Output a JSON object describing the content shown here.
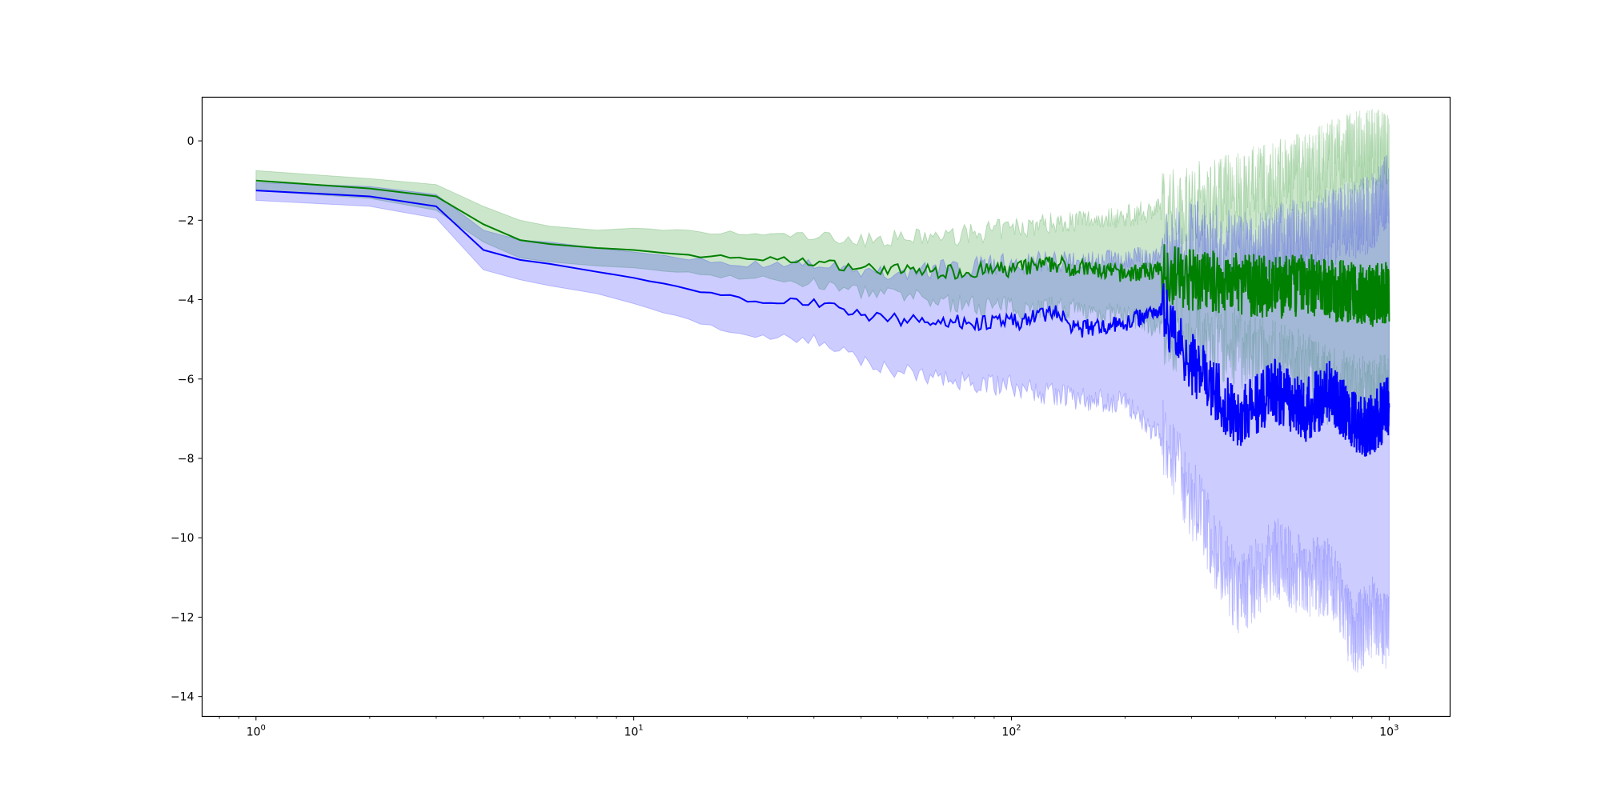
{
  "chart_data": {
    "type": "line",
    "title": "",
    "xlabel": "",
    "ylabel": "",
    "xscale": "log",
    "xlim": [
      0.72,
      1450
    ],
    "ylim": [
      -14.5,
      1.1
    ],
    "grid": false,
    "legend": "none",
    "x_tick_labels": [
      {
        "base": "10",
        "exp": "0",
        "value": 1
      },
      {
        "base": "10",
        "exp": "1",
        "value": 10
      },
      {
        "base": "10",
        "exp": "2",
        "value": 100
      },
      {
        "base": "10",
        "exp": "3",
        "value": 1000
      }
    ],
    "y_tick_labels": [
      {
        "text": "0",
        "value": 0
      },
      {
        "text": "−2",
        "value": -2
      },
      {
        "text": "−4",
        "value": -4
      },
      {
        "text": "−6",
        "value": -6
      },
      {
        "text": "−8",
        "value": -8
      },
      {
        "text": "−10",
        "value": -10
      },
      {
        "text": "−12",
        "value": -12
      },
      {
        "text": "−14",
        "value": -14
      }
    ],
    "series": [
      {
        "color": "#008000",
        "band_color": "#008000",
        "points": [
          {
            "x": 1,
            "y": -1.0,
            "lo": -1.25,
            "hi": -0.75
          },
          {
            "x": 2,
            "y": -1.2,
            "lo": -1.45,
            "hi": -0.95
          },
          {
            "x": 3,
            "y": -1.4,
            "lo": -1.75,
            "hi": -1.1
          },
          {
            "x": 4,
            "y": -2.1,
            "lo": -2.55,
            "hi": -1.65
          },
          {
            "x": 5,
            "y": -2.5,
            "lo": -2.95,
            "hi": -2.0
          },
          {
            "x": 6,
            "y": -2.6,
            "lo": -3.05,
            "hi": -2.15
          },
          {
            "x": 8,
            "y": -2.7,
            "lo": -3.15,
            "hi": -2.25
          },
          {
            "x": 10,
            "y": -2.75,
            "lo": -3.2,
            "hi": -2.2
          },
          {
            "x": 15,
            "y": -2.9,
            "lo": -3.35,
            "hi": -2.3
          },
          {
            "x": 20,
            "y": -2.95,
            "lo": -3.45,
            "hi": -2.35
          },
          {
            "x": 30,
            "y": -3.05,
            "lo": -3.6,
            "hi": -2.4
          },
          {
            "x": 40,
            "y": -3.2,
            "lo": -3.8,
            "hi": -2.5
          },
          {
            "x": 50,
            "y": -3.25,
            "lo": -3.9,
            "hi": -2.45
          },
          {
            "x": 70,
            "y": -3.3,
            "lo": -4.1,
            "hi": -2.4
          },
          {
            "x": 100,
            "y": -3.25,
            "lo": -4.2,
            "hi": -2.2
          },
          {
            "x": 130,
            "y": -3.1,
            "lo": -4.2,
            "hi": -2.05
          },
          {
            "x": 150,
            "y": -3.2,
            "lo": -4.3,
            "hi": -2.0
          },
          {
            "x": 200,
            "y": -3.35,
            "lo": -4.4,
            "hi": -1.9
          },
          {
            "x": 250,
            "y": -3.25,
            "lo": -4.7,
            "hi": -1.7
          },
          {
            "x": 300,
            "y": -3.5,
            "lo": -5.0,
            "hi": -1.5
          },
          {
            "x": 400,
            "y": -3.6,
            "lo": -5.2,
            "hi": -1.3
          },
          {
            "x": 500,
            "y": -3.7,
            "lo": -5.5,
            "hi": -1.0
          },
          {
            "x": 600,
            "y": -3.6,
            "lo": -5.8,
            "hi": -0.8
          },
          {
            "x": 700,
            "y": -3.75,
            "lo": -6.2,
            "hi": -0.5
          },
          {
            "x": 800,
            "y": -3.85,
            "lo": -6.4,
            "hi": -0.3
          },
          {
            "x": 900,
            "y": -3.9,
            "lo": -6.5,
            "hi": -0.2
          },
          {
            "x": 1000,
            "y": -3.8,
            "lo": -6.3,
            "hi": -0.3
          }
        ]
      },
      {
        "color": "#0000ff",
        "band_color": "#0000ff",
        "points": [
          {
            "x": 1,
            "y": -1.25,
            "lo": -1.5,
            "hi": -1.05
          },
          {
            "x": 2,
            "y": -1.4,
            "lo": -1.65,
            "hi": -1.15
          },
          {
            "x": 3,
            "y": -1.65,
            "lo": -1.95,
            "hi": -1.35
          },
          {
            "x": 4,
            "y": -2.75,
            "lo": -3.25,
            "hi": -2.25
          },
          {
            "x": 5,
            "y": -3.0,
            "lo": -3.5,
            "hi": -2.5
          },
          {
            "x": 6,
            "y": -3.1,
            "lo": -3.65,
            "hi": -2.55
          },
          {
            "x": 8,
            "y": -3.3,
            "lo": -3.85,
            "hi": -2.7
          },
          {
            "x": 10,
            "y": -3.45,
            "lo": -4.1,
            "hi": -2.8
          },
          {
            "x": 15,
            "y": -3.8,
            "lo": -4.6,
            "hi": -3.0
          },
          {
            "x": 20,
            "y": -4.0,
            "lo": -4.9,
            "hi": -3.1
          },
          {
            "x": 30,
            "y": -4.05,
            "lo": -5.0,
            "hi": -3.1
          },
          {
            "x": 40,
            "y": -4.4,
            "lo": -5.5,
            "hi": -3.35
          },
          {
            "x": 50,
            "y": -4.5,
            "lo": -5.8,
            "hi": -3.3
          },
          {
            "x": 70,
            "y": -4.55,
            "lo": -6.0,
            "hi": -3.2
          },
          {
            "x": 100,
            "y": -4.6,
            "lo": -6.2,
            "hi": -3.1
          },
          {
            "x": 130,
            "y": -4.3,
            "lo": -6.4,
            "hi": -3.0
          },
          {
            "x": 150,
            "y": -4.75,
            "lo": -6.5,
            "hi": -3.1
          },
          {
            "x": 200,
            "y": -4.6,
            "lo": -6.6,
            "hi": -3.0
          },
          {
            "x": 250,
            "y": -4.2,
            "lo": -7.5,
            "hi": -2.9
          },
          {
            "x": 300,
            "y": -5.6,
            "lo": -9.0,
            "hi": -2.5
          },
          {
            "x": 400,
            "y": -7.0,
            "lo": -11.5,
            "hi": -2.8
          },
          {
            "x": 500,
            "y": -6.3,
            "lo": -10.5,
            "hi": -2.6
          },
          {
            "x": 600,
            "y": -6.8,
            "lo": -11.0,
            "hi": -2.4
          },
          {
            "x": 700,
            "y": -6.3,
            "lo": -11.0,
            "hi": -2.2
          },
          {
            "x": 800,
            "y": -7.1,
            "lo": -12.5,
            "hi": -2.0
          },
          {
            "x": 900,
            "y": -7.2,
            "lo": -12.0,
            "hi": -1.8
          },
          {
            "x": 1000,
            "y": -6.6,
            "lo": -12.5,
            "hi": -1.2
          }
        ]
      }
    ]
  }
}
